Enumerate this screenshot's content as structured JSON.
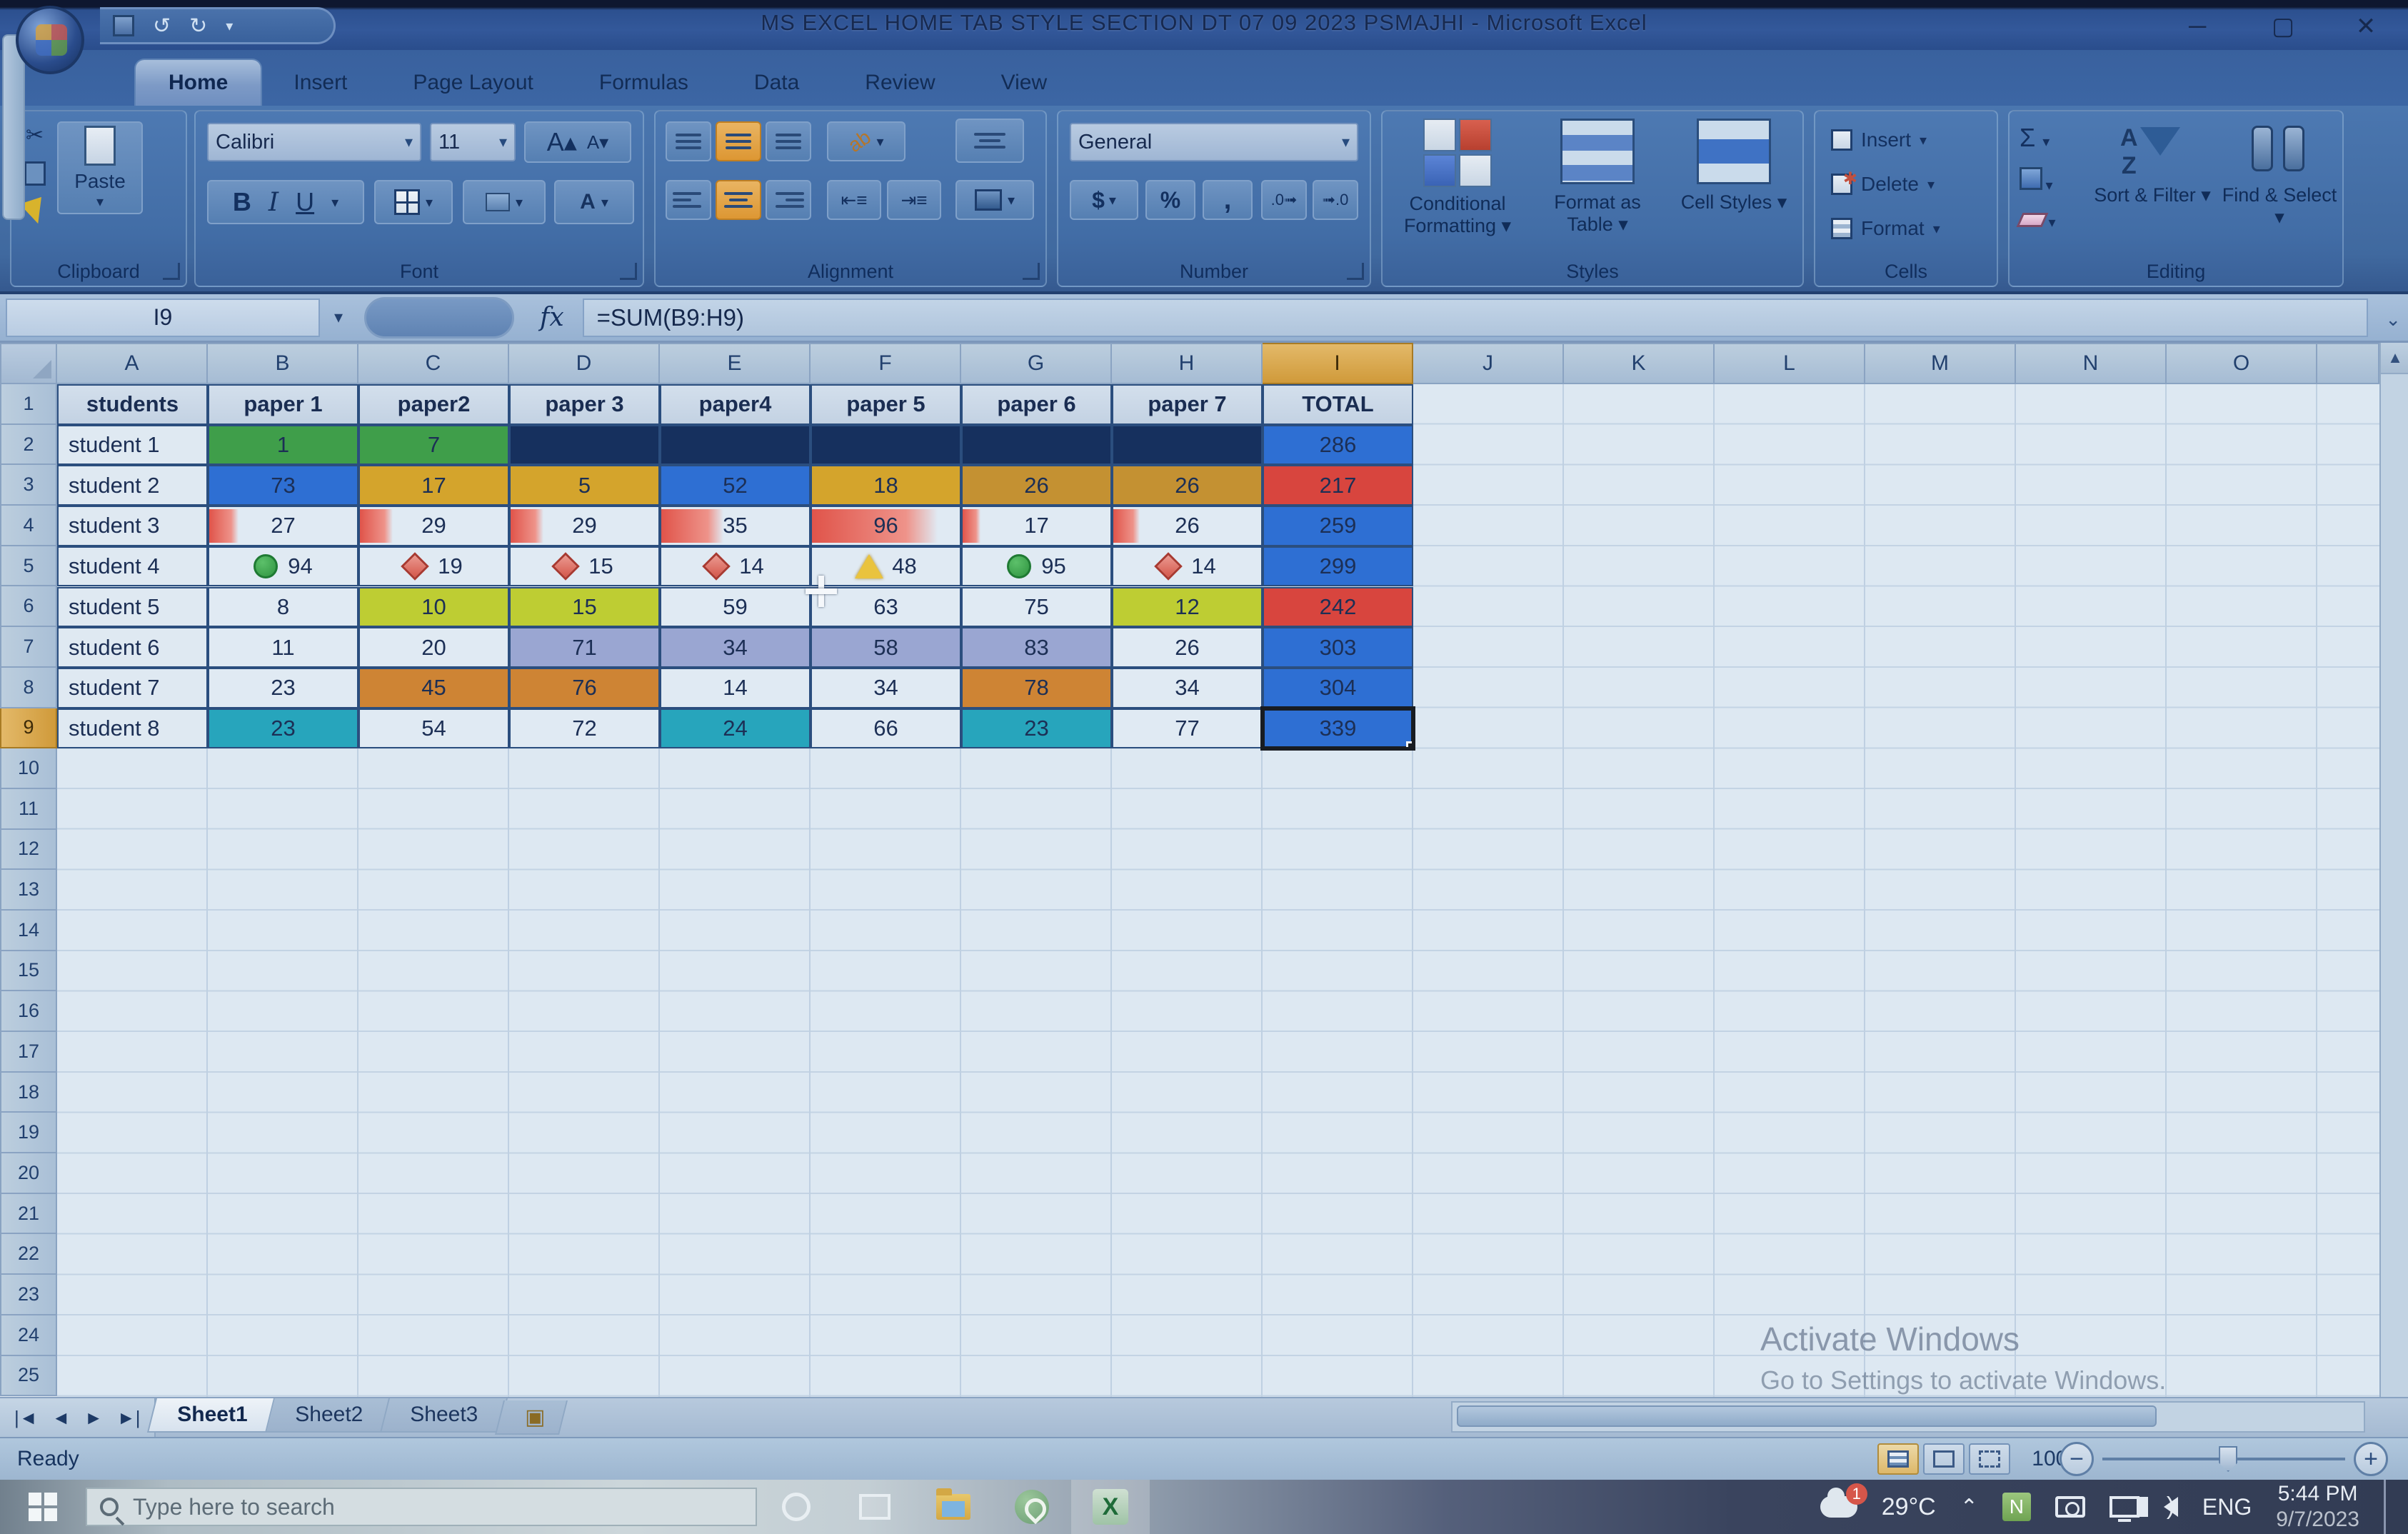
{
  "window": {
    "title": "MS EXCEL HOME TAB STYLE SECTION DT 07 09 2023 PSMAJHI - Microsoft Excel",
    "controls": {
      "minimize": "─",
      "maximize": "▢",
      "close": "✕"
    }
  },
  "ribbon": {
    "tabs": [
      "Home",
      "Insert",
      "Page Layout",
      "Formulas",
      "Data",
      "Review",
      "View"
    ],
    "active_tab": "Home",
    "groups": {
      "clipboard": {
        "label": "Clipboard",
        "paste_label": "Paste"
      },
      "font": {
        "label": "Font",
        "font_name": "Calibri",
        "font_size": "11"
      },
      "alignment": {
        "label": "Alignment"
      },
      "number": {
        "label": "Number",
        "format": "General"
      },
      "styles": {
        "label": "Styles",
        "conditional": "Conditional Formatting",
        "format_table": "Format as Table",
        "cell_styles": "Cell Styles"
      },
      "cells": {
        "label": "Cells",
        "insert": "Insert",
        "delete": "Delete",
        "format": "Format"
      },
      "editing": {
        "label": "Editing",
        "sort_filter": "Sort & Filter",
        "find_select": "Find & Select"
      }
    }
  },
  "formula_bar": {
    "name_box": "I9",
    "fx": "fx",
    "formula": "=SUM(B9:H9)"
  },
  "sheet": {
    "columns": [
      "A",
      "B",
      "C",
      "D",
      "E",
      "F",
      "G",
      "H",
      "I",
      "J",
      "K",
      "L",
      "M",
      "N",
      "O"
    ],
    "visible_rows": 25,
    "selected_cell": "I9",
    "selected_column": "I",
    "selected_row": 9,
    "header_row": [
      "students",
      "paper 1",
      "paper2",
      "paper 3",
      "paper4",
      "paper 5",
      "paper 6",
      "paper 7",
      "TOTAL"
    ],
    "rows": [
      {
        "r": 2,
        "student": "student 1",
        "values": [
          {
            "v": "1",
            "bg": "green"
          },
          {
            "v": "7",
            "bg": "green"
          },
          {
            "v": "",
            "bg": "navy"
          },
          {
            "v": "",
            "bg": "navy"
          },
          {
            "v": "",
            "bg": "navy"
          },
          {
            "v": "",
            "bg": "navy"
          },
          {
            "v": "",
            "bg": "navy"
          }
        ],
        "total": {
          "v": "286",
          "bg": "blue"
        }
      },
      {
        "r": 3,
        "student": "student 2",
        "values": [
          {
            "v": "73",
            "bg": "blue"
          },
          {
            "v": "17",
            "bg": "gold"
          },
          {
            "v": "5",
            "bg": "gold"
          },
          {
            "v": "52",
            "bg": "blue"
          },
          {
            "v": "18",
            "bg": "gold"
          },
          {
            "v": "26",
            "bg": "bronze"
          },
          {
            "v": "26",
            "bg": "bronze"
          }
        ],
        "total": {
          "v": "217",
          "bg": "red"
        }
      },
      {
        "r": 4,
        "student": "student 3",
        "values": [
          {
            "v": "27",
            "bg": "plain",
            "bar": 20
          },
          {
            "v": "29",
            "bg": "plain",
            "bar": 22
          },
          {
            "v": "29",
            "bg": "plain",
            "bar": 22
          },
          {
            "v": "35",
            "bg": "plain",
            "bar": 42
          },
          {
            "v": "96",
            "bg": "plain",
            "bar": 85
          },
          {
            "v": "17",
            "bg": "plain",
            "bar": 12
          },
          {
            "v": "26",
            "bg": "plain",
            "bar": 18
          }
        ],
        "total": {
          "v": "259",
          "bg": "blue"
        }
      },
      {
        "r": 5,
        "student": "student 4",
        "values": [
          {
            "v": "94",
            "bg": "plain",
            "icon": "circle-green"
          },
          {
            "v": "19",
            "bg": "plain",
            "icon": "diamond-red"
          },
          {
            "v": "15",
            "bg": "plain",
            "icon": "diamond-red"
          },
          {
            "v": "14",
            "bg": "plain",
            "icon": "diamond-red"
          },
          {
            "v": "48",
            "bg": "plain",
            "icon": "triangle-yellow"
          },
          {
            "v": "95",
            "bg": "plain",
            "icon": "circle-green"
          },
          {
            "v": "14",
            "bg": "plain",
            "icon": "diamond-red"
          }
        ],
        "total": {
          "v": "299",
          "bg": "blue"
        }
      },
      {
        "r": 6,
        "student": "student 5",
        "values": [
          {
            "v": "8",
            "bg": "plain"
          },
          {
            "v": "10",
            "bg": "yellowgreen"
          },
          {
            "v": "15",
            "bg": "yellowgreen"
          },
          {
            "v": "59",
            "bg": "plain"
          },
          {
            "v": "63",
            "bg": "plain"
          },
          {
            "v": "75",
            "bg": "plain"
          },
          {
            "v": "12",
            "bg": "yellowgreen"
          }
        ],
        "total": {
          "v": "242",
          "bg": "red"
        }
      },
      {
        "r": 7,
        "student": "student 6",
        "values": [
          {
            "v": "11",
            "bg": "plain"
          },
          {
            "v": "20",
            "bg": "plain"
          },
          {
            "v": "71",
            "bg": "lavender"
          },
          {
            "v": "34",
            "bg": "lavender"
          },
          {
            "v": "58",
            "bg": "lavender"
          },
          {
            "v": "83",
            "bg": "lavender"
          },
          {
            "v": "26",
            "bg": "plain"
          }
        ],
        "total": {
          "v": "303",
          "bg": "blue"
        }
      },
      {
        "r": 8,
        "student": "student 7",
        "values": [
          {
            "v": "23",
            "bg": "plain"
          },
          {
            "v": "45",
            "bg": "orange"
          },
          {
            "v": "76",
            "bg": "orange"
          },
          {
            "v": "14",
            "bg": "plain"
          },
          {
            "v": "34",
            "bg": "plain"
          },
          {
            "v": "78",
            "bg": "orange"
          },
          {
            "v": "34",
            "bg": "plain"
          }
        ],
        "total": {
          "v": "304",
          "bg": "blue"
        }
      },
      {
        "r": 9,
        "student": "student 8",
        "values": [
          {
            "v": "23",
            "bg": "teal"
          },
          {
            "v": "54",
            "bg": "plain"
          },
          {
            "v": "72",
            "bg": "plain"
          },
          {
            "v": "24",
            "bg": "teal"
          },
          {
            "v": "66",
            "bg": "plain"
          },
          {
            "v": "23",
            "bg": "teal"
          },
          {
            "v": "77",
            "bg": "plain"
          }
        ],
        "total": {
          "v": "339",
          "bg": "blue",
          "selected": true
        }
      }
    ]
  },
  "colors": {
    "green": "#3f9e4a",
    "navy": "#16305e",
    "blue": "#2e6fd3",
    "gold": "#d4a42c",
    "bronze": "#c49132",
    "red": "#d8453e",
    "plain": "#e0eaf3",
    "yellowgreen": "#becd33",
    "lavender": "#9aa6d2",
    "orange": "#ce8434",
    "teal": "#27a5bc",
    "header": "#ccd9e8"
  },
  "sheet_tabs": {
    "tabs": [
      "Sheet1",
      "Sheet2",
      "Sheet3"
    ],
    "active": "Sheet1"
  },
  "status_bar": {
    "mode": "Ready",
    "zoom": "100%"
  },
  "watermark": {
    "line1": "Activate Windows",
    "line2": "Go to Settings to activate Windows."
  },
  "taskbar": {
    "search_placeholder": "Type here to search",
    "temperature": "29°C",
    "weather_badge": "1",
    "language": "ENG",
    "time": "5:44 PM",
    "date": "9/7/2023"
  }
}
